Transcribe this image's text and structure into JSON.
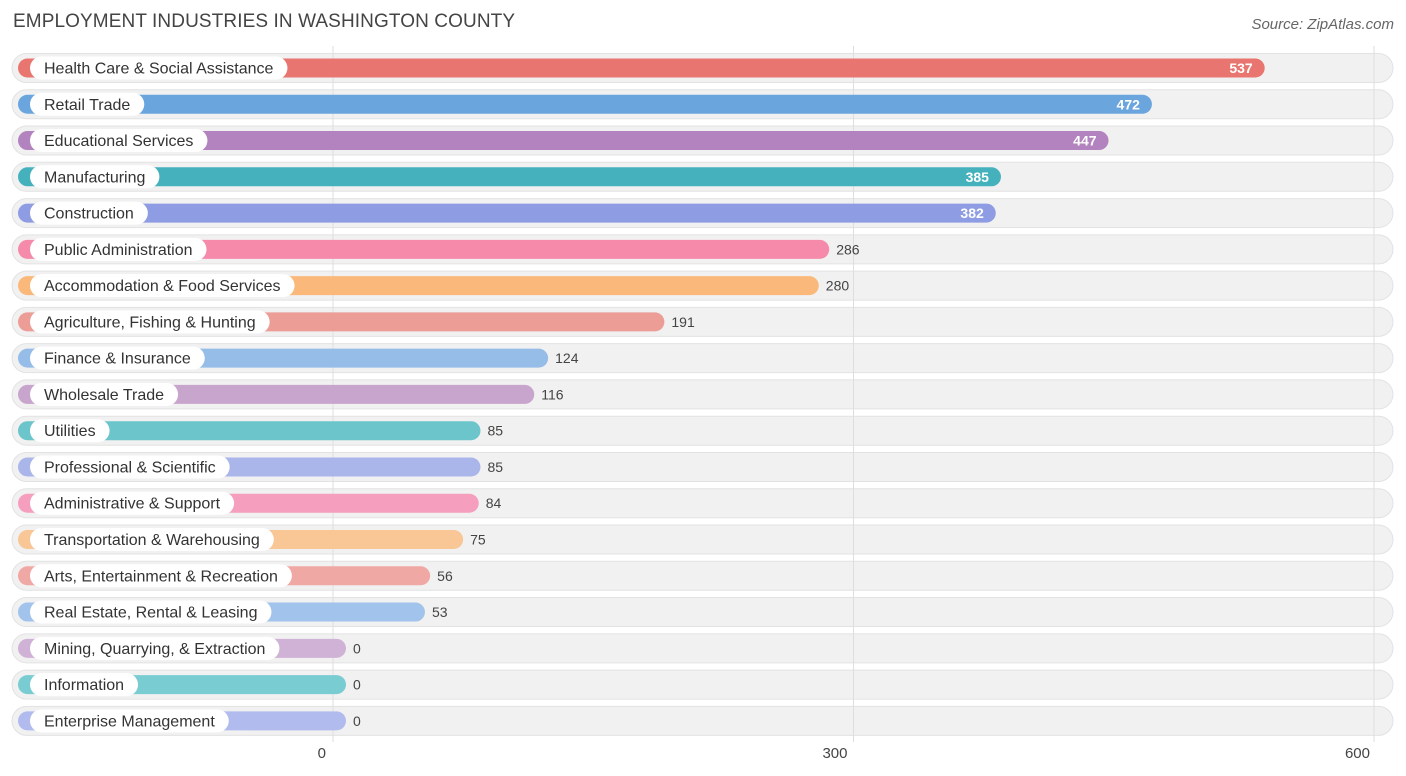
{
  "chart_data": {
    "type": "bar",
    "orientation": "horizontal",
    "title": "EMPLOYMENT INDUSTRIES IN WASHINGTON COUNTY",
    "source": "Source: ZipAtlas.com",
    "xlabel": "",
    "ylabel": "",
    "xlim": [
      0,
      600
    ],
    "ticks": [
      0,
      300,
      600
    ],
    "grid": true,
    "categories": [
      "Health Care & Social Assistance",
      "Retail Trade",
      "Educational Services",
      "Manufacturing",
      "Construction",
      "Public Administration",
      "Accommodation & Food Services",
      "Agriculture, Fishing & Hunting",
      "Finance & Insurance",
      "Wholesale Trade",
      "Utilities",
      "Professional & Scientific",
      "Administrative & Support",
      "Transportation & Warehousing",
      "Arts, Entertainment & Recreation",
      "Real Estate, Rental & Leasing",
      "Mining, Quarrying, & Extraction",
      "Information",
      "Enterprise Management"
    ],
    "values": [
      537,
      472,
      447,
      385,
      382,
      286,
      280,
      191,
      124,
      116,
      85,
      85,
      84,
      75,
      56,
      53,
      0,
      0,
      0
    ],
    "colors": [
      "#e8756f",
      "#6aa5dd",
      "#b283be",
      "#45b1bc",
      "#8e9de3",
      "#f58aab",
      "#fab97a",
      "#eb9d96",
      "#96bde8",
      "#c8a5cc",
      "#6bc5ca",
      "#aab6ea",
      "#f59ebe",
      "#f8c795",
      "#efa8a3",
      "#a1c3ec",
      "#cfb2d5",
      "#79ccd1",
      "#b1bbee"
    ]
  }
}
